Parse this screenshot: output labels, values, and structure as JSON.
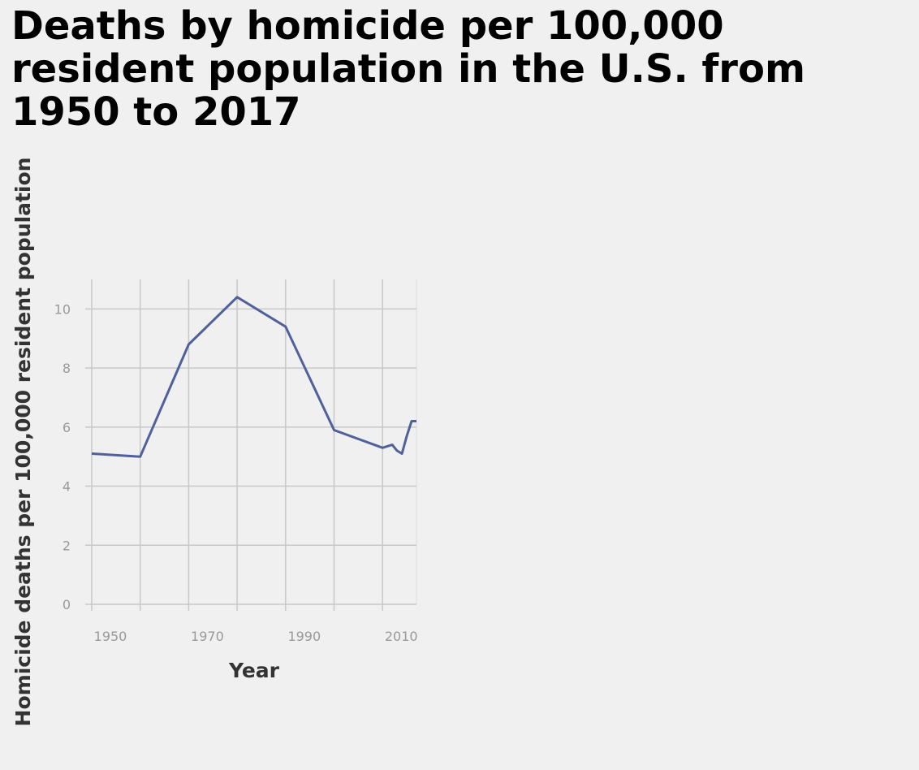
{
  "chart_data": {
    "type": "line",
    "title": "Deaths by homicide per 100,000 resident population in the U.S. from 1950 to 2017",
    "xlabel": "Year",
    "ylabel": "Homicide deaths per 100,000 resident population",
    "xlim": [
      1950,
      2017
    ],
    "ylim": [
      0,
      11
    ],
    "x_ticks": [
      1950,
      1960,
      1970,
      1980,
      1990,
      2000,
      2010
    ],
    "x_tick_labels": [
      "1950",
      "1970",
      "1990",
      "2010"
    ],
    "y_ticks": [
      0,
      2,
      4,
      6,
      8,
      10
    ],
    "y_tick_labels": [
      "0",
      "2",
      "4",
      "6",
      "8",
      "10"
    ],
    "grid": true,
    "series": [
      {
        "color": "#50609a",
        "x": [
          1950,
          1960,
          1970,
          1980,
          1990,
          2000,
          2010,
          2012,
          2013,
          2014,
          2015,
          2016,
          2017
        ],
        "y": [
          5.1,
          5.0,
          8.8,
          10.4,
          9.4,
          5.9,
          5.3,
          5.4,
          5.2,
          5.1,
          5.7,
          6.2,
          6.2
        ]
      }
    ]
  }
}
